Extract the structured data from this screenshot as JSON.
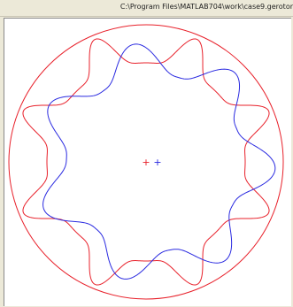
{
  "window": {
    "title": "C:\\Program Files\\MATLAB704\\work\\case9.gerotor"
  },
  "colors": {
    "background": "#ece9d8",
    "plot_background": "#ffffff",
    "outer_rotor": "#e8202a",
    "inner_rotor": "#2a2ae0"
  },
  "markers": {
    "outer_center_symbol": "+",
    "inner_center_symbol": "+"
  }
}
